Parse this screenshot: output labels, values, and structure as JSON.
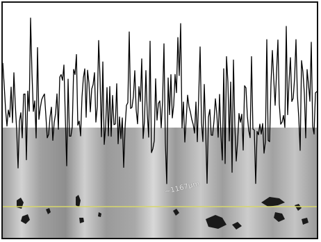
{
  "figure": {
    "scale_label": "~1167µm",
    "colors": {
      "background": "#ffffff",
      "border": "#111111",
      "trace": "#000000",
      "micrograph_base": "#a6a6a6",
      "reference_line": "#d8d86a"
    }
  }
}
